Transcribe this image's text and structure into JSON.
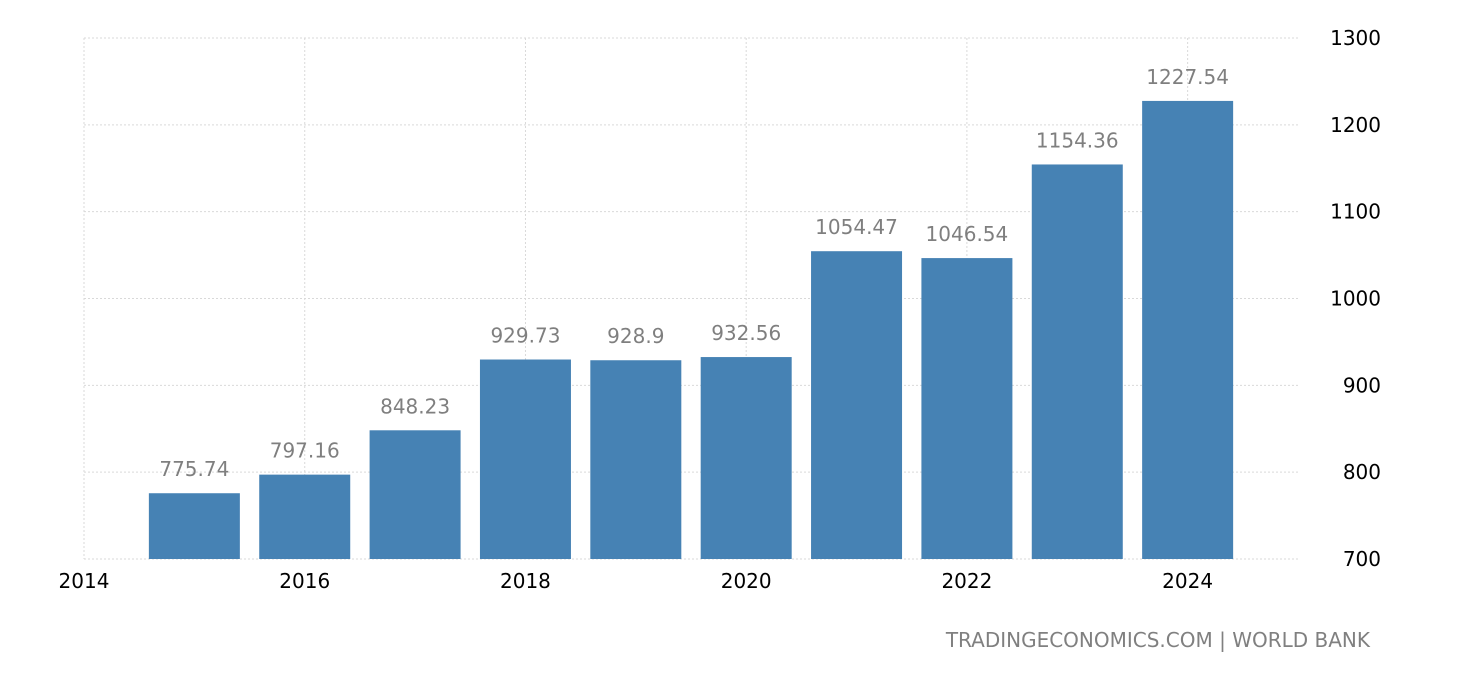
{
  "chart_data": {
    "type": "bar",
    "categories": [
      "2015",
      "2016",
      "2017",
      "2018",
      "2019",
      "2020",
      "2021",
      "2022",
      "2023",
      "2024"
    ],
    "values": [
      775.74,
      797.16,
      848.23,
      929.73,
      928.9,
      932.56,
      1054.47,
      1046.54,
      1154.36,
      1227.54
    ],
    "data_labels": [
      "775.74",
      "797.16",
      "848.23",
      "929.73",
      "928.9",
      "932.56",
      "1054.47",
      "1046.54",
      "1154.36",
      "1227.54"
    ],
    "x_ticks": [
      "2014",
      "2016",
      "2018",
      "2020",
      "2022",
      "2024"
    ],
    "x_tick_values": [
      2014,
      2016,
      2018,
      2020,
      2022,
      2024
    ],
    "y_ticks": [
      "700",
      "800",
      "900",
      "1000",
      "1100",
      "1200",
      "1300"
    ],
    "y_tick_values": [
      700,
      800,
      900,
      1000,
      1100,
      1200,
      1300
    ],
    "ylim": [
      700,
      1300
    ],
    "xlim": [
      2014,
      2025
    ],
    "y_axis_side": "right",
    "grid": true,
    "bar_color": "#4682b4",
    "label_color": "#7f7f7f"
  },
  "source_text": "TRADINGECONOMICS.COM | WORLD BANK"
}
